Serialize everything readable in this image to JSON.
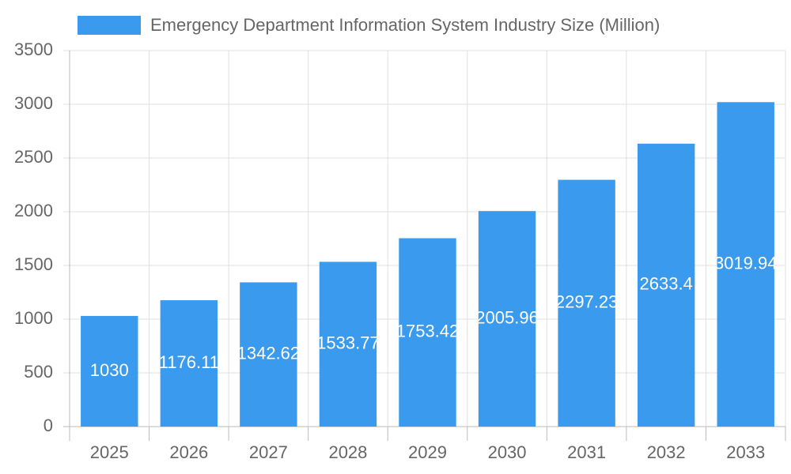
{
  "chart_data": {
    "type": "bar",
    "categories": [
      "2025",
      "2026",
      "2027",
      "2028",
      "2029",
      "2030",
      "2031",
      "2032",
      "2033"
    ],
    "series": [
      {
        "name": "Emergency Department Information System Industry Size (Million)",
        "color": "#3a9aee",
        "values": [
          1030,
          1176.11,
          1342.62,
          1533.77,
          1753.42,
          2005.96,
          2297.23,
          2633.4,
          3019.94
        ]
      }
    ],
    "ylim": [
      0,
      3500
    ],
    "yticks": [
      0,
      500,
      1000,
      1500,
      2000,
      2500,
      3000,
      3500
    ],
    "grid": true,
    "legend": "top"
  }
}
